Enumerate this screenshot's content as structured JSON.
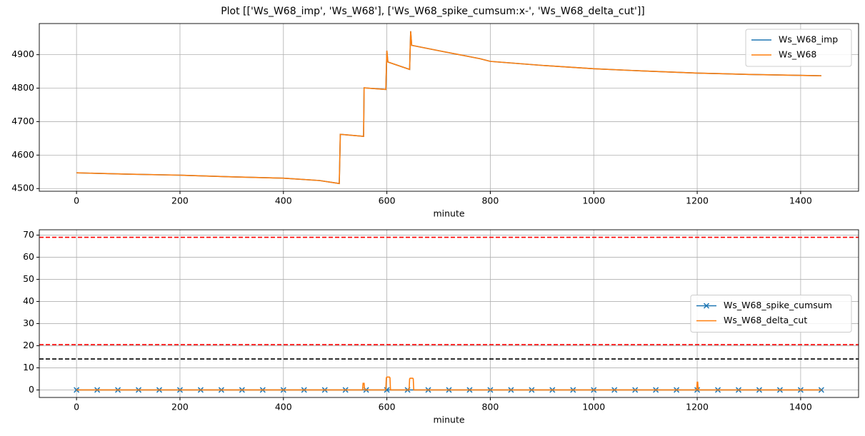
{
  "title": "Plot [['Ws_W68_imp', 'Ws_W68'], ['Ws_W68_spike_cumsum:x-', 'Ws_W68_delta_cut']]",
  "chart_data": [
    {
      "type": "line",
      "xlabel": "minute",
      "xlim": [
        -72,
        1512
      ],
      "xticks": [
        0,
        200,
        400,
        600,
        800,
        1000,
        1200,
        1400
      ],
      "ylim": [
        4492,
        4993
      ],
      "yticks": [
        4500,
        4600,
        4700,
        4800,
        4900
      ],
      "grid": true,
      "legend": "upper right",
      "series": [
        {
          "name": "Ws_W68_imp",
          "color": "#1f77b4",
          "x": [
            0,
            100,
            200,
            300,
            400,
            470,
            508,
            510,
            555,
            556,
            598,
            600,
            602,
            644,
            646,
            648,
            700,
            780,
            800,
            900,
            1000,
            1100,
            1200,
            1300,
            1440
          ],
          "values": [
            4547,
            4543,
            4540,
            4535,
            4531,
            4524,
            4515,
            4662,
            4656,
            4801,
            4796,
            4912,
            4878,
            4856,
            4970,
            4928,
            4912,
            4888,
            4880,
            4868,
            4858,
            4851,
            4845,
            4841,
            4837
          ]
        },
        {
          "name": "Ws_W68",
          "color": "#ff7f0e",
          "x": [
            0,
            100,
            200,
            300,
            400,
            470,
            508,
            510,
            555,
            556,
            598,
            600,
            602,
            644,
            646,
            648,
            700,
            780,
            800,
            900,
            1000,
            1100,
            1200,
            1300,
            1440
          ],
          "values": [
            4547,
            4543,
            4540,
            4535,
            4531,
            4524,
            4515,
            4662,
            4656,
            4801,
            4796,
            4912,
            4878,
            4856,
            4970,
            4928,
            4912,
            4888,
            4880,
            4868,
            4858,
            4851,
            4845,
            4841,
            4837
          ]
        }
      ]
    },
    {
      "type": "line",
      "xlabel": "minute",
      "xlim": [
        -72,
        1512
      ],
      "xticks": [
        0,
        200,
        400,
        600,
        800,
        1000,
        1200,
        1400
      ],
      "ylim": [
        -3.4,
        72.4
      ],
      "yticks": [
        0,
        10,
        20,
        30,
        40,
        50,
        60,
        70
      ],
      "grid": true,
      "legend": "center right",
      "hlines": [
        {
          "value": 69,
          "color": "#ff0000"
        },
        {
          "value": 20.5,
          "color": "#ff0000"
        },
        {
          "value": 14,
          "color": "#000000"
        }
      ],
      "series": [
        {
          "name": "Ws_W68_spike_cumsum",
          "color": "#1f77b4",
          "marker": "x",
          "x": [
            0,
            40,
            80,
            120,
            160,
            200,
            240,
            280,
            320,
            360,
            400,
            440,
            480,
            520,
            560,
            600,
            640,
            680,
            720,
            760,
            800,
            840,
            880,
            920,
            960,
            1000,
            1040,
            1080,
            1120,
            1160,
            1200,
            1240,
            1280,
            1320,
            1360,
            1400,
            1440
          ],
          "values": [
            0,
            0,
            0,
            0,
            0,
            0,
            0,
            0,
            0,
            0,
            0,
            0,
            0,
            0,
            0,
            0,
            0,
            0,
            0,
            0,
            0,
            0,
            0,
            0,
            0,
            0,
            0,
            0,
            0,
            0,
            0,
            0,
            0,
            0,
            0,
            0,
            0
          ]
        },
        {
          "name": "Ws_W68_delta_cut",
          "color": "#ff7f0e",
          "x": [
            0,
            553,
            554,
            556,
            557,
            598,
            599,
            600,
            605,
            606,
            607,
            643,
            644,
            645,
            650,
            651,
            652,
            1199,
            1200,
            1201,
            1202,
            1440
          ],
          "values": [
            0,
            0,
            3,
            3,
            0,
            0,
            5.5,
            5.8,
            5.8,
            5.5,
            0,
            0,
            5,
            5.3,
            5.3,
            5,
            0,
            0,
            3.5,
            3.5,
            0,
            0
          ]
        }
      ]
    }
  ]
}
